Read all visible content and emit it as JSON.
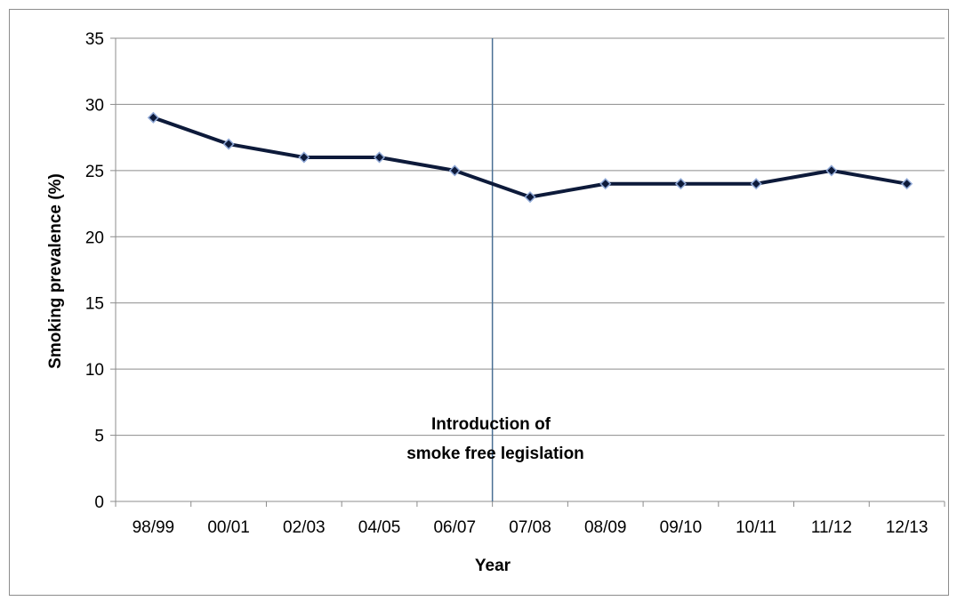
{
  "chart_data": {
    "type": "line",
    "title": "",
    "xlabel": "Year",
    "ylabel": "Smoking prevalence (%)",
    "categories": [
      "98/99",
      "00/01",
      "02/03",
      "04/05",
      "06/07",
      "07/08",
      "08/09",
      "09/10",
      "10/11",
      "11/12",
      "12/13"
    ],
    "series": [
      {
        "values": [
          29,
          27,
          26,
          26,
          25,
          23,
          24,
          24,
          24,
          25,
          24
        ]
      }
    ],
    "ylim": [
      0,
      35
    ],
    "yticks": [
      0,
      5,
      10,
      15,
      20,
      25,
      30,
      35
    ],
    "grid": "horizontal",
    "legend": "none",
    "annotation": {
      "lines": [
        "Introduction of",
        "smoke free legislation"
      ],
      "between_categories": [
        "06/07",
        "07/08"
      ]
    },
    "colors": {
      "line": "#0d1a3a",
      "marker_fill": "#0d1a3a",
      "marker_stroke": "#8fa8d6",
      "gridline": "#8c8c8c",
      "axis": "#8c8c8c",
      "vertical_line": "#4a6f94"
    }
  }
}
